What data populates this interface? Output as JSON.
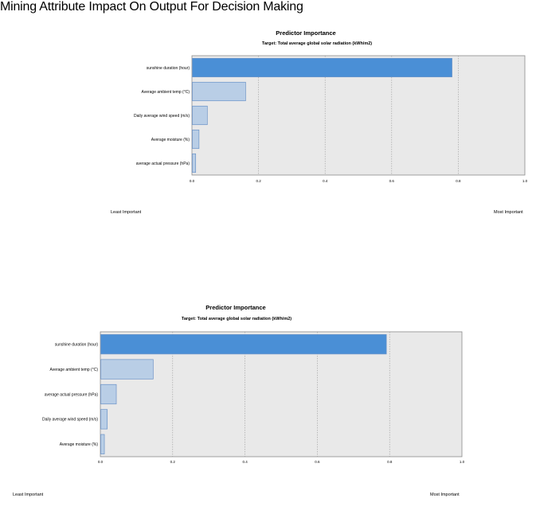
{
  "page": {
    "title": "Mining Attribute Impact On Output For Decision Making"
  },
  "colors": {
    "top_bar": "#4a8fd6",
    "other_bars": "#b9cee6",
    "plot_bg": "#e9e9e9",
    "bar_edge": "#6b93c7"
  },
  "chart_data": [
    {
      "type": "bar",
      "orientation": "horizontal",
      "title": "Predictor Importance",
      "subtitle": "Target: Total average global solar radiation (kWh/m2)",
      "categories": [
        "sunshine duration (hour)",
        "Average ambient temp (°C)",
        "Daily average wind speed (m/s)",
        "Average moisture (%)",
        "average actual pressure (hPa)"
      ],
      "values": [
        0.78,
        0.16,
        0.045,
        0.02,
        0.01
      ],
      "xlim": [
        0.0,
        1.0
      ],
      "xticks": [
        "0.0",
        "0.2",
        "0.4",
        "0.6",
        "0.8",
        "1.0"
      ],
      "grid": true,
      "axis_left_label": "Least Important",
      "axis_right_label": "Most Important"
    },
    {
      "type": "bar",
      "orientation": "horizontal",
      "title": "Predictor Importance",
      "subtitle": "Target: Total average global solar radiation (kWh/m2)",
      "categories": [
        "sunshine duration (hour)",
        "Average ambient temp (°C)",
        "average actual pressure (hPa)",
        "Daily average wind speed (m/s)",
        "Average moisture (%)"
      ],
      "values": [
        0.79,
        0.145,
        0.043,
        0.018,
        0.01
      ],
      "xlim": [
        0.0,
        1.0
      ],
      "xticks": [
        "0.0",
        "0.2",
        "0.4",
        "0.6",
        "0.8",
        "1.0"
      ],
      "grid": true,
      "axis_left_label": "Least Important",
      "axis_right_label": "Most Important"
    }
  ]
}
